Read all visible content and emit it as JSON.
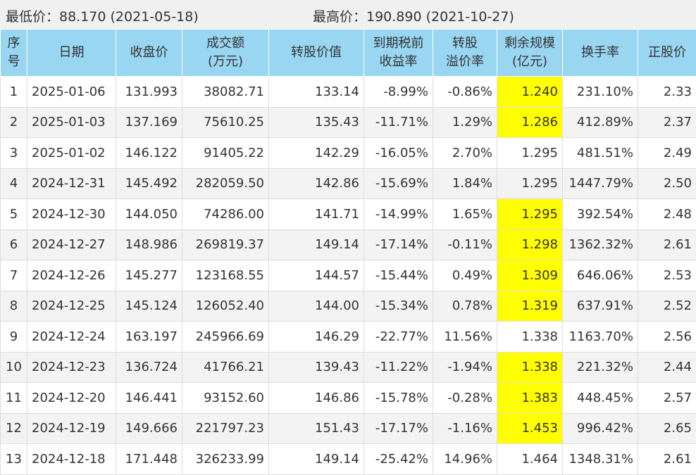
{
  "summary": {
    "low": "最低价：88.170 (2021-05-18)",
    "high": "最高价：190.890 (2021-10-27)"
  },
  "headers": [
    {
      "l1": "序",
      "l2": "号"
    },
    {
      "l1": "日期",
      "l2": ""
    },
    {
      "l1": "收盘价",
      "l2": ""
    },
    {
      "l1": "成交额",
      "l2": "(万元)"
    },
    {
      "l1": "转股价值",
      "l2": ""
    },
    {
      "l1": "到期税前",
      "l2": "收益率"
    },
    {
      "l1": "转股",
      "l2": "溢价率"
    },
    {
      "l1": "剩余规模",
      "l2": "(亿元)"
    },
    {
      "l1": "换手率",
      "l2": ""
    },
    {
      "l1": "正股价",
      "l2": ""
    }
  ],
  "highlight_color": "#ffff00",
  "rows": [
    {
      "no": "1",
      "date": "2025-01-06",
      "close": "131.993",
      "amount": "38082.71",
      "conv": "133.14",
      "ytm": "-8.99%",
      "prem": "-0.86%",
      "scale": "1.240",
      "hl": true,
      "turnover": "231.10%",
      "stock": "2.33"
    },
    {
      "no": "2",
      "date": "2025-01-03",
      "close": "137.169",
      "amount": "75610.25",
      "conv": "135.43",
      "ytm": "-11.71%",
      "prem": "1.29%",
      "scale": "1.286",
      "hl": true,
      "turnover": "412.89%",
      "stock": "2.37"
    },
    {
      "no": "3",
      "date": "2025-01-02",
      "close": "146.122",
      "amount": "91405.22",
      "conv": "142.29",
      "ytm": "-16.05%",
      "prem": "2.70%",
      "scale": "1.295",
      "hl": false,
      "turnover": "481.51%",
      "stock": "2.49"
    },
    {
      "no": "4",
      "date": "2024-12-31",
      "close": "145.492",
      "amount": "282059.50",
      "conv": "142.86",
      "ytm": "-15.69%",
      "prem": "1.84%",
      "scale": "1.295",
      "hl": false,
      "turnover": "1447.79%",
      "stock": "2.50"
    },
    {
      "no": "5",
      "date": "2024-12-30",
      "close": "144.050",
      "amount": "74286.00",
      "conv": "141.71",
      "ytm": "-14.99%",
      "prem": "1.65%",
      "scale": "1.295",
      "hl": true,
      "turnover": "392.54%",
      "stock": "2.48"
    },
    {
      "no": "6",
      "date": "2024-12-27",
      "close": "148.986",
      "amount": "269819.37",
      "conv": "149.14",
      "ytm": "-17.14%",
      "prem": "-0.11%",
      "scale": "1.298",
      "hl": true,
      "turnover": "1362.32%",
      "stock": "2.61"
    },
    {
      "no": "7",
      "date": "2024-12-26",
      "close": "145.277",
      "amount": "123168.55",
      "conv": "144.57",
      "ytm": "-15.44%",
      "prem": "0.49%",
      "scale": "1.309",
      "hl": true,
      "turnover": "646.06%",
      "stock": "2.53"
    },
    {
      "no": "8",
      "date": "2024-12-25",
      "close": "145.124",
      "amount": "126052.40",
      "conv": "144.00",
      "ytm": "-15.34%",
      "prem": "0.78%",
      "scale": "1.319",
      "hl": true,
      "turnover": "637.91%",
      "stock": "2.52"
    },
    {
      "no": "9",
      "date": "2024-12-24",
      "close": "163.197",
      "amount": "245966.69",
      "conv": "146.29",
      "ytm": "-22.77%",
      "prem": "11.56%",
      "scale": "1.338",
      "hl": false,
      "turnover": "1163.70%",
      "stock": "2.56"
    },
    {
      "no": "10",
      "date": "2024-12-23",
      "close": "136.724",
      "amount": "41766.21",
      "conv": "139.43",
      "ytm": "-11.22%",
      "prem": "-1.94%",
      "scale": "1.338",
      "hl": true,
      "turnover": "221.32%",
      "stock": "2.44"
    },
    {
      "no": "11",
      "date": "2024-12-20",
      "close": "146.441",
      "amount": "93152.60",
      "conv": "146.86",
      "ytm": "-15.78%",
      "prem": "-0.28%",
      "scale": "1.383",
      "hl": true,
      "turnover": "448.45%",
      "stock": "2.57"
    },
    {
      "no": "12",
      "date": "2024-12-19",
      "close": "149.666",
      "amount": "221797.23",
      "conv": "151.43",
      "ytm": "-17.17%",
      "prem": "-1.16%",
      "scale": "1.453",
      "hl": true,
      "turnover": "996.42%",
      "stock": "2.65"
    },
    {
      "no": "13",
      "date": "2024-12-18",
      "close": "171.448",
      "amount": "326233.99",
      "conv": "149.14",
      "ytm": "-25.42%",
      "prem": "14.96%",
      "scale": "1.464",
      "hl": false,
      "turnover": "1348.31%",
      "stock": "2.61"
    }
  ]
}
